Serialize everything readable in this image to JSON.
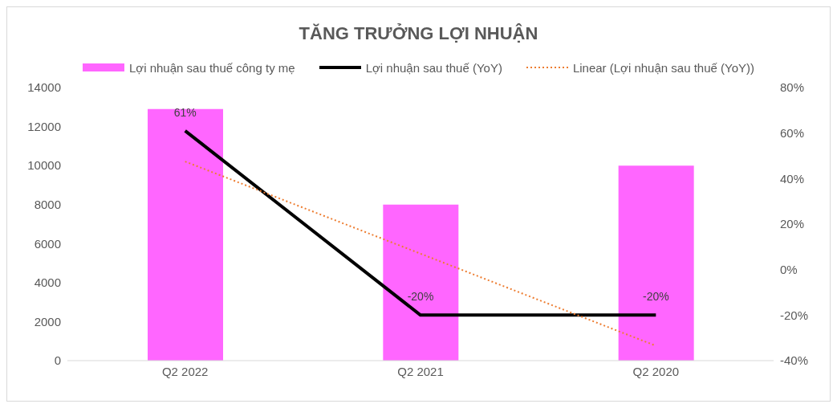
{
  "chart_data": {
    "type": "bar",
    "title": "TĂNG TRƯỞNG LỢI NHUẬN",
    "categories": [
      "Q2 2022",
      "Q2 2021",
      "Q2 2020"
    ],
    "series": [
      {
        "name": "Lợi nhuận sau thuế công ty mẹ",
        "color": "#ff66ff",
        "values": [
          12900,
          8000,
          10000
        ]
      },
      {
        "name": "Lợi nhuận sau thuế (YoY)",
        "type": "line",
        "axis": "y2",
        "color": "#000000",
        "values": [
          61,
          -20,
          -20
        ],
        "value_labels": [
          "61%",
          "-20%",
          "-20%"
        ]
      },
      {
        "name": "Linear (Lợi nhuận sau thuế (YoY))",
        "type": "line",
        "axis": "y2",
        "color": "#ed7d31",
        "line_style": "dotted",
        "values": [
          47.5,
          7,
          -33.5
        ]
      }
    ],
    "ylim": [
      0,
      14000
    ],
    "yticks": [
      0,
      2000,
      4000,
      6000,
      8000,
      10000,
      12000,
      14000
    ],
    "y2lim": [
      -40,
      80
    ],
    "y2ticks": [
      {
        "value": -40,
        "label": "-40%"
      },
      {
        "value": -20,
        "label": "-20%"
      },
      {
        "value": 0,
        "label": "0%"
      },
      {
        "value": 20,
        "label": "20%"
      },
      {
        "value": 40,
        "label": "40%"
      },
      {
        "value": 60,
        "label": "60%"
      },
      {
        "value": 80,
        "label": "80%"
      }
    ],
    "grid": false,
    "legend": "top",
    "marker": "none"
  }
}
